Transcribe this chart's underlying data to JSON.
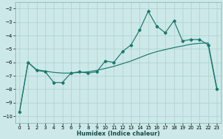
{
  "xlabel": "Humidex (Indice chaleur)",
  "line1_x": [
    0,
    1,
    2,
    3,
    4,
    5,
    6,
    7,
    8,
    9,
    10,
    11,
    12,
    13,
    14,
    15,
    16,
    17,
    18,
    19,
    20,
    21,
    22,
    23
  ],
  "line1_y": [
    -9.7,
    -6.0,
    -6.6,
    -6.7,
    -7.5,
    -7.5,
    -6.8,
    -6.7,
    -6.8,
    -6.7,
    -5.9,
    -6.0,
    -5.2,
    -4.7,
    -3.6,
    -2.2,
    -3.3,
    -3.8,
    -2.9,
    -4.4,
    -4.3,
    -4.3,
    -4.7,
    -8.0
  ],
  "line2_x": [
    0,
    1,
    2,
    3,
    4,
    5,
    6,
    7,
    8,
    9,
    10,
    11,
    12,
    13,
    14,
    15,
    16,
    17,
    18,
    19,
    20,
    21,
    22,
    23
  ],
  "line2_y": [
    -9.7,
    -6.0,
    -6.55,
    -6.65,
    -6.75,
    -6.8,
    -6.8,
    -6.75,
    -6.7,
    -6.6,
    -6.45,
    -6.3,
    -6.1,
    -5.9,
    -5.65,
    -5.4,
    -5.2,
    -5.05,
    -4.9,
    -4.78,
    -4.65,
    -4.58,
    -4.55,
    -7.9
  ],
  "line_color": "#1a7a6e",
  "bg_color": "#cce8e8",
  "grid_color": "#aacfcf",
  "ylim": [
    -10.5,
    -1.5
  ],
  "xlim": [
    -0.5,
    23.5
  ],
  "yticks": [
    -10,
    -9,
    -8,
    -7,
    -6,
    -5,
    -4,
    -3,
    -2
  ],
  "xticks": [
    0,
    1,
    2,
    3,
    4,
    5,
    6,
    7,
    8,
    9,
    10,
    11,
    12,
    13,
    14,
    15,
    16,
    17,
    18,
    19,
    20,
    21,
    22,
    23
  ]
}
